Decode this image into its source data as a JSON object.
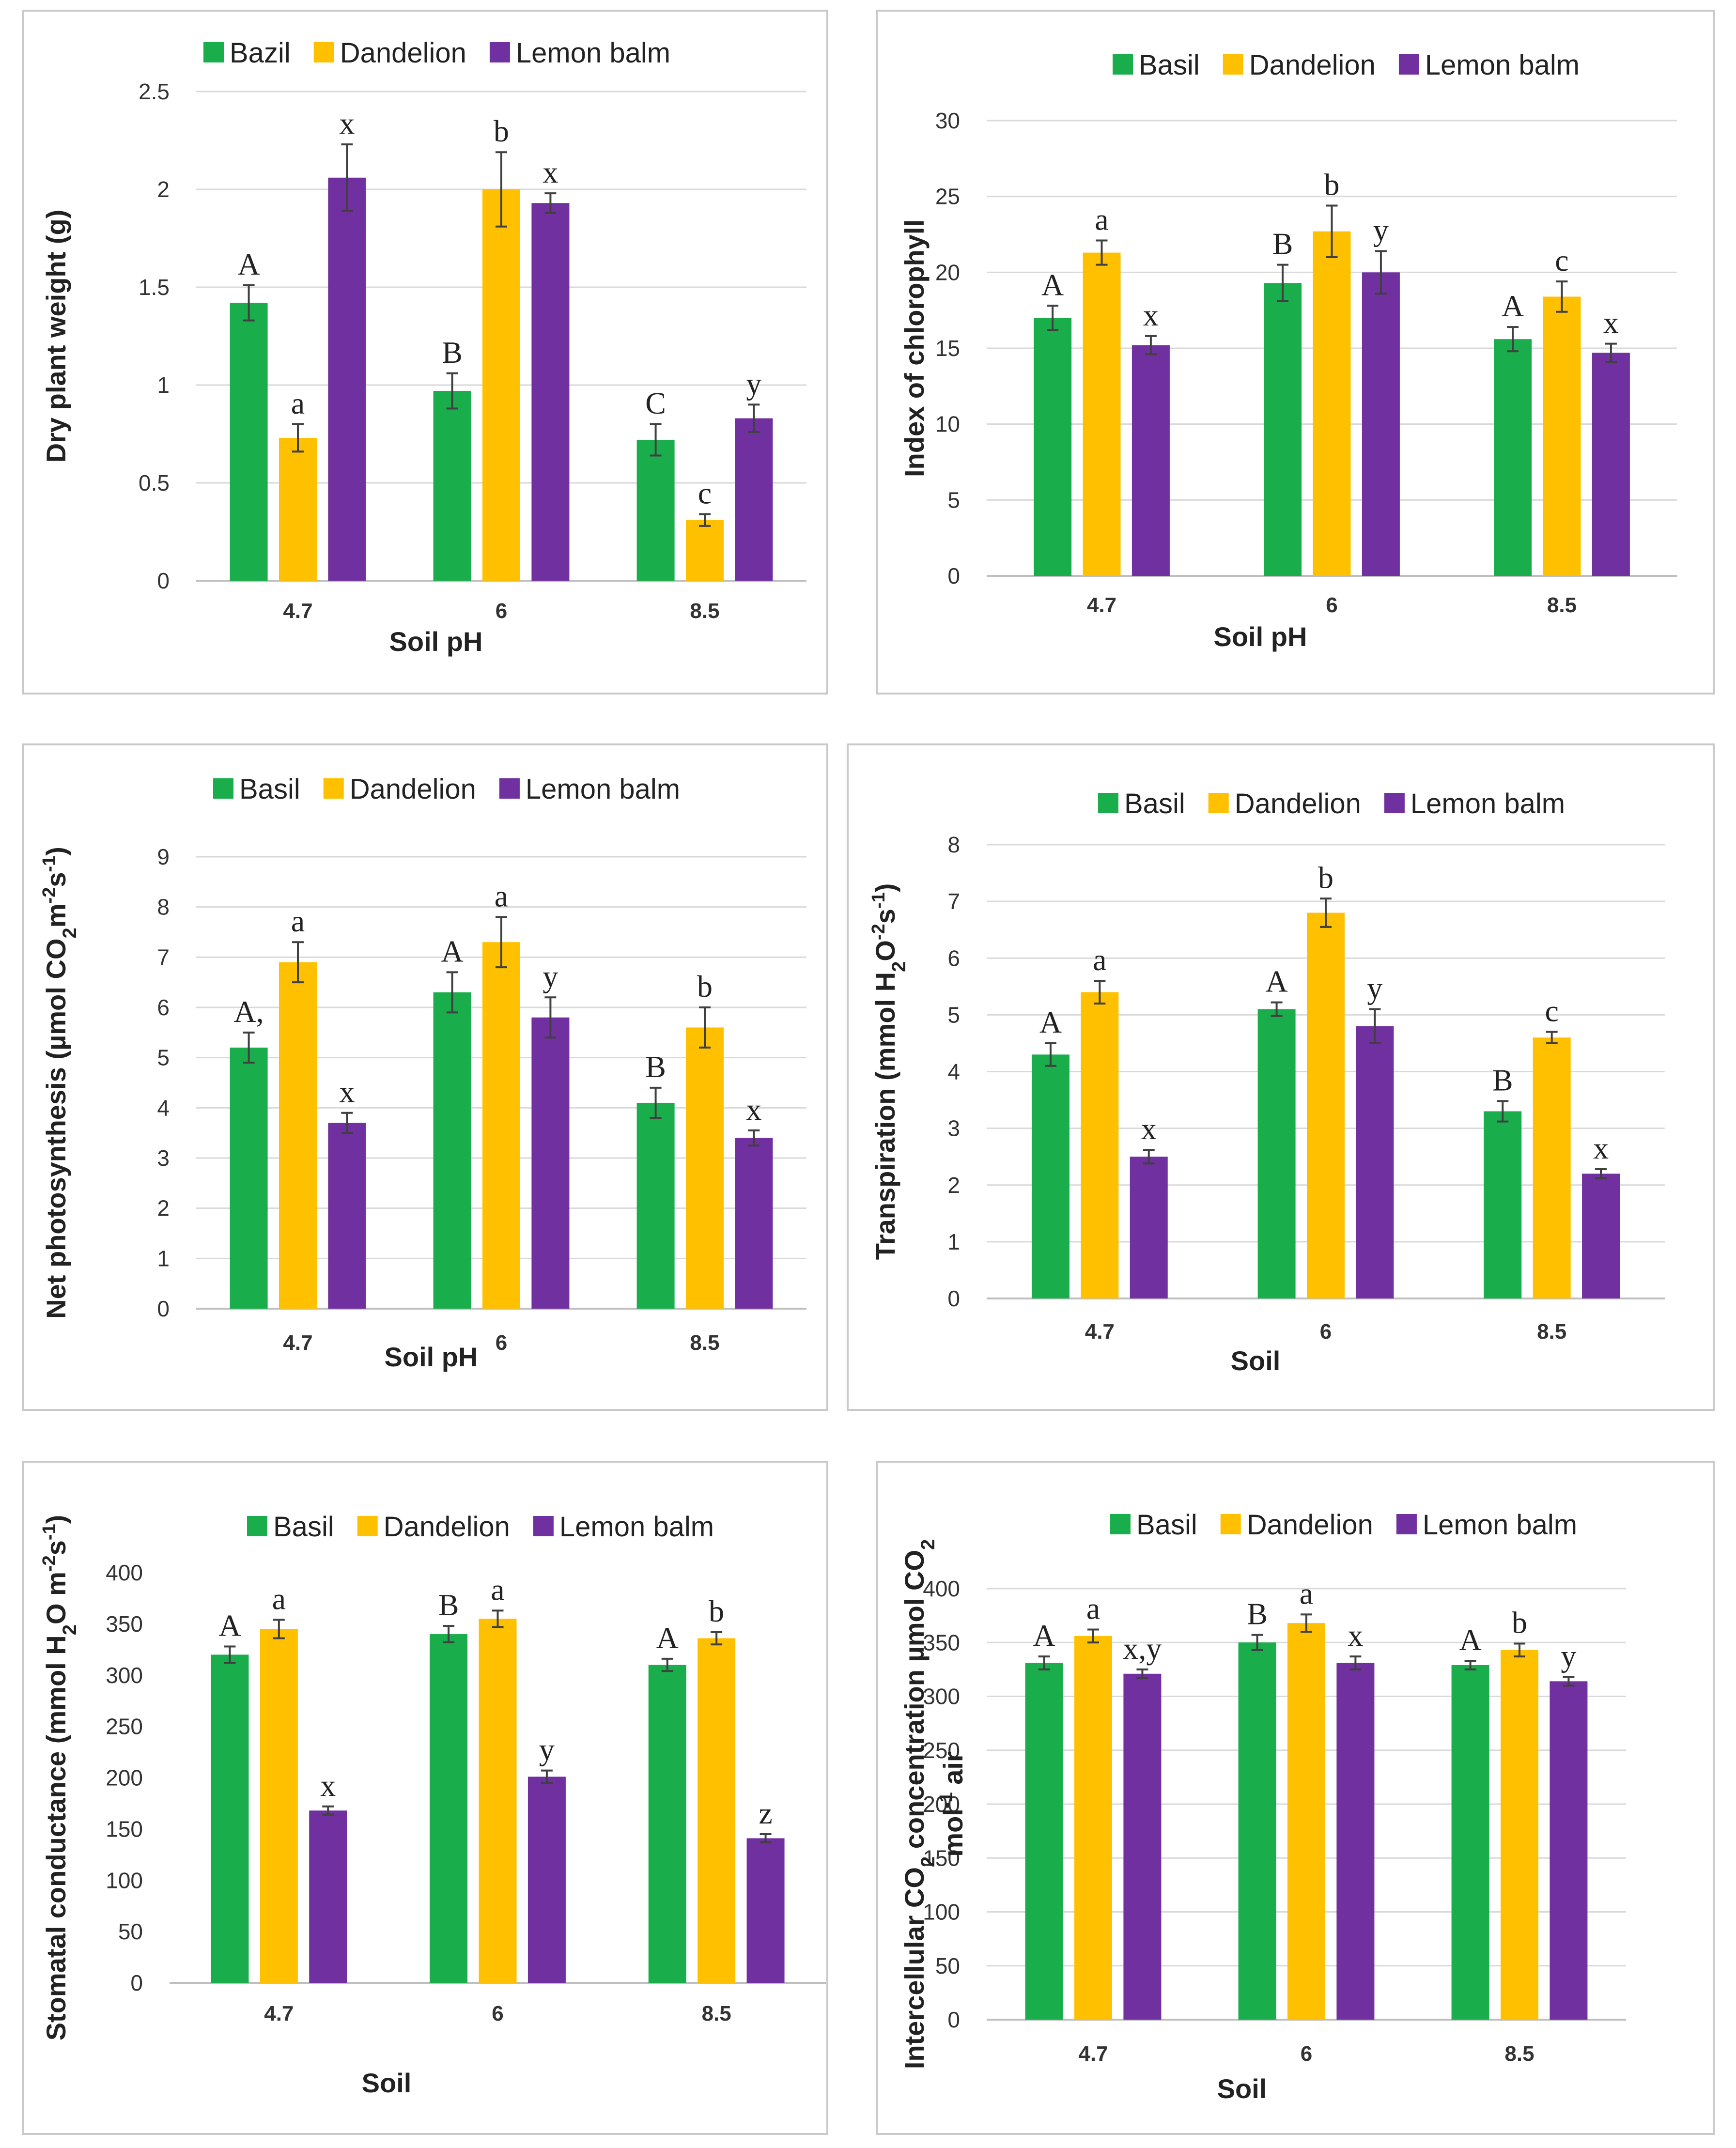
{
  "colors": {
    "series": [
      "#1aad4b",
      "#ffc000",
      "#7030a0"
    ],
    "grid": "#d9d9d9",
    "text": "#333333"
  },
  "charts": [
    {
      "id": "dry-weight",
      "chart_data": {
        "type": "bar",
        "title": "",
        "xlabel": "Soil pH",
        "ylabel_parts": [
          {
            "t": "Dry plant weight (g)"
          }
        ],
        "categories": [
          "4.7",
          "6",
          "8.5"
        ],
        "ylim": [
          0,
          2.5
        ],
        "ytick_labels": [
          "0",
          "0.5",
          "1",
          "1.5",
          "2",
          "2.5"
        ],
        "grid": true,
        "legend_position": "top",
        "series": [
          {
            "name": "Bazil",
            "values": [
              1.42,
              0.97,
              0.72
            ],
            "errors": [
              0.09,
              0.09,
              0.08
            ],
            "letters": [
              "A",
              "B",
              "C"
            ]
          },
          {
            "name": "Dandelion",
            "values": [
              0.73,
              2.0,
              0.31
            ],
            "errors": [
              0.07,
              0.19,
              0.03
            ],
            "letters": [
              "a",
              "b",
              "c"
            ]
          },
          {
            "name": "Lemon balm",
            "values": [
              2.06,
              1.93,
              0.83
            ],
            "errors": [
              0.17,
              0.05,
              0.07
            ],
            "letters": [
              "x",
              "x",
              "y"
            ]
          }
        ]
      }
    },
    {
      "id": "chlorophyll",
      "chart_data": {
        "type": "bar",
        "title": "",
        "xlabel": "Soil pH",
        "ylabel_parts": [
          {
            "t": "Index of chlorophyll"
          }
        ],
        "categories": [
          "4.7",
          "6",
          "8.5"
        ],
        "ylim": [
          0,
          30
        ],
        "ytick_labels": [
          "0",
          "5",
          "10",
          "15",
          "20",
          "25",
          "30"
        ],
        "grid": true,
        "legend_position": "top",
        "series": [
          {
            "name": "Basil",
            "values": [
              17.0,
              19.3,
              15.6
            ],
            "errors": [
              0.8,
              1.2,
              0.8
            ],
            "letters": [
              "A",
              "B",
              "A"
            ]
          },
          {
            "name": "Dandelion",
            "values": [
              21.3,
              22.7,
              18.4
            ],
            "errors": [
              0.8,
              1.7,
              1.0
            ],
            "letters": [
              "a",
              "b",
              "c"
            ]
          },
          {
            "name": "Lemon balm",
            "values": [
              15.2,
              20.0,
              14.7
            ],
            "errors": [
              0.6,
              1.4,
              0.6
            ],
            "letters": [
              "x",
              "y",
              "x"
            ]
          }
        ]
      }
    },
    {
      "id": "net-photosynthesis",
      "chart_data": {
        "type": "bar",
        "title": "",
        "xlabel": "Soil pH",
        "ylabel_parts": [
          {
            "t": "Net photosynthesis (µmol CO"
          },
          {
            "t": "2",
            "sub": true
          },
          {
            "t": "m"
          },
          {
            "t": "-2",
            "sup": true
          },
          {
            "t": "s"
          },
          {
            "t": "-1",
            "sup": true
          },
          {
            "t": ")"
          }
        ],
        "categories": [
          "4.7",
          "6",
          "8.5"
        ],
        "ylim": [
          0,
          9
        ],
        "ytick_labels": [
          "0",
          "1",
          "2",
          "3",
          "4",
          "5",
          "6",
          "7",
          "8",
          "9"
        ],
        "grid": true,
        "legend_position": "top",
        "series": [
          {
            "name": "Basil",
            "values": [
              5.2,
              6.3,
              4.1
            ],
            "errors": [
              0.3,
              0.4,
              0.3
            ],
            "letters": [
              "A,",
              "A",
              "B"
            ]
          },
          {
            "name": "Dandelion",
            "values": [
              6.9,
              7.3,
              5.6
            ],
            "errors": [
              0.4,
              0.5,
              0.4
            ],
            "letters": [
              "a",
              "a",
              "b"
            ]
          },
          {
            "name": "Lemon balm",
            "values": [
              3.7,
              5.8,
              3.4
            ],
            "errors": [
              0.2,
              0.4,
              0.15
            ],
            "letters": [
              "x",
              "y",
              "x"
            ]
          }
        ]
      }
    },
    {
      "id": "transpiration",
      "chart_data": {
        "type": "bar",
        "title": "",
        "xlabel": "Soil",
        "ylabel_parts": [
          {
            "t": "Transpiration (mmol H"
          },
          {
            "t": "2",
            "sub": true
          },
          {
            "t": "O"
          },
          {
            "t": "-2",
            "sup": true
          },
          {
            "t": "s"
          },
          {
            "t": "-1",
            "sup": true
          },
          {
            "t": ")"
          }
        ],
        "categories": [
          "4.7",
          "6",
          "8.5"
        ],
        "ylim": [
          0,
          8
        ],
        "ytick_labels": [
          "0",
          "1",
          "2",
          "3",
          "4",
          "5",
          "6",
          "7",
          "8"
        ],
        "grid": true,
        "legend_position": "top",
        "series": [
          {
            "name": "Basil",
            "values": [
              4.3,
              5.1,
              3.3
            ],
            "errors": [
              0.2,
              0.12,
              0.18
            ],
            "letters": [
              "A",
              "A",
              "B"
            ]
          },
          {
            "name": "Dandelion",
            "values": [
              5.4,
              6.8,
              4.6
            ],
            "errors": [
              0.2,
              0.25,
              0.1
            ],
            "letters": [
              "a",
              "b",
              "c"
            ]
          },
          {
            "name": "Lemon balm",
            "values": [
              2.5,
              4.8,
              2.2
            ],
            "errors": [
              0.12,
              0.3,
              0.08
            ],
            "letters": [
              "x",
              "y",
              "x"
            ]
          }
        ]
      }
    },
    {
      "id": "stomatal-conductance",
      "chart_data": {
        "type": "bar",
        "title": "",
        "xlabel": "Soil",
        "ylabel_parts": [
          {
            "t": "Stomatal conductance (mmol H"
          },
          {
            "t": "2",
            "sub": true
          },
          {
            "t": "O m"
          },
          {
            "t": "-2",
            "sup": true
          },
          {
            "t": "s"
          },
          {
            "t": "-1",
            "sup": true
          },
          {
            "t": ")"
          }
        ],
        "categories": [
          "4.7",
          "6",
          "8.5"
        ],
        "ylim": [
          0,
          400
        ],
        "ytick_labels": [
          "0",
          "50",
          "100",
          "150",
          "200",
          "250",
          "300",
          "350",
          "400"
        ],
        "grid": false,
        "legend_position": "top",
        "series": [
          {
            "name": "Basil",
            "values": [
              320,
              340,
              310
            ],
            "errors": [
              8,
              8,
              6
            ],
            "letters": [
              "A",
              "B",
              "A"
            ]
          },
          {
            "name": "Dandelion",
            "values": [
              345,
              355,
              336
            ],
            "errors": [
              9,
              8,
              6
            ],
            "letters": [
              "a",
              "a",
              "b"
            ]
          },
          {
            "name": "Lemon balm",
            "values": [
              168,
              201,
              141
            ],
            "errors": [
              4,
              6,
              4
            ],
            "letters": [
              "x",
              "y",
              "z"
            ]
          }
        ]
      }
    },
    {
      "id": "intercellular-co2",
      "chart_data": {
        "type": "bar",
        "title": "",
        "xlabel": "Soil",
        "ylabel_lines": [
          [
            {
              "t": "Intercellular CO"
            },
            {
              "t": "2",
              "sub": true
            },
            {
              "t": " concentration µmol CO"
            },
            {
              "t": "2",
              "sub": true
            }
          ],
          [
            {
              "t": "mol"
            },
            {
              "t": "-1",
              "sup": true
            },
            {
              "t": " air"
            }
          ]
        ],
        "categories": [
          "4.7",
          "6",
          "8.5"
        ],
        "ylim": [
          0,
          400
        ],
        "ytick_labels": [
          "0",
          "50",
          "100",
          "150",
          "200",
          "250",
          "300",
          "350",
          "400"
        ],
        "grid": true,
        "legend_position": "top",
        "series": [
          {
            "name": "Basil",
            "values": [
              331,
              350,
              329
            ],
            "errors": [
              6,
              7,
              4
            ],
            "letters": [
              "A",
              "B",
              "A"
            ]
          },
          {
            "name": "Dandelion",
            "values": [
              356,
              368,
              343
            ],
            "errors": [
              6,
              8,
              6
            ],
            "letters": [
              "a",
              "a",
              "b"
            ]
          },
          {
            "name": "Lemon balm",
            "values": [
              321,
              331,
              314
            ],
            "errors": [
              4,
              6,
              4
            ],
            "letters": [
              "x,y",
              "x",
              "y"
            ]
          }
        ]
      }
    }
  ]
}
